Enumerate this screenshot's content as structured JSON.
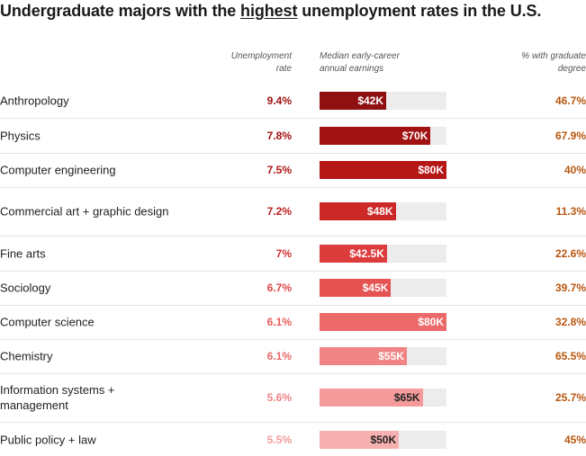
{
  "title": {
    "before": "Undergraduate majors with the ",
    "highlight": "highest",
    "after": " unemployment rates in the U.S."
  },
  "columns": {
    "unemployment_line1": "Unemployment",
    "unemployment_line2": "rate",
    "earnings_line1": "Median early-career",
    "earnings_line2": "annual earnings",
    "grad_line1": "% with graduate",
    "grad_line2": "degree"
  },
  "colors": {
    "rate_text": [
      "#a31212",
      "#a31212",
      "#b01717",
      "#bd1f1f",
      "#d42e2e",
      "#e04646",
      "#e85b5b",
      "#e86b6b",
      "#ef8585",
      "#f19b9b"
    ],
    "bar_fill": [
      "#8f1010",
      "#a11212",
      "#b51616",
      "#cc2828",
      "#dc3c3c",
      "#e55252",
      "#ec6a6a",
      "#f08484",
      "#f59a9a",
      "#f7b0b0"
    ],
    "bar_label": [
      "#ffffff",
      "#ffffff",
      "#ffffff",
      "#ffffff",
      "#ffffff",
      "#ffffff",
      "#ffffff",
      "#ffffff",
      "#222222",
      "#222222"
    ],
    "grad_text": "#b8560f"
  },
  "chart_data": {
    "type": "table",
    "title": "Undergraduate majors with the highest unemployment rates in the U.S.",
    "columns": [
      "Unemployment rate",
      "Median early-career annual earnings",
      "% with graduate degree"
    ],
    "earnings_max": 80,
    "rows": [
      {
        "major": "Anthropology",
        "rate": "9.4%",
        "earnings": 42,
        "earnings_label": "$42K",
        "grad": "46.7%"
      },
      {
        "major": "Physics",
        "rate": "7.8%",
        "earnings": 70,
        "earnings_label": "$70K",
        "grad": "67.9%"
      },
      {
        "major": "Computer engineering",
        "rate": "7.5%",
        "earnings": 80,
        "earnings_label": "$80K",
        "grad": "40%"
      },
      {
        "major": "Commercial art + graphic design",
        "rate": "7.2%",
        "earnings": 48,
        "earnings_label": "$48K",
        "grad": "11.3%"
      },
      {
        "major": "Fine arts",
        "rate": "7%",
        "earnings": 42.5,
        "earnings_label": "$42.5K",
        "grad": "22.6%"
      },
      {
        "major": "Sociology",
        "rate": "6.7%",
        "earnings": 45,
        "earnings_label": "$45K",
        "grad": "39.7%"
      },
      {
        "major": "Computer science",
        "rate": "6.1%",
        "earnings": 80,
        "earnings_label": "$80K",
        "grad": "32.8%"
      },
      {
        "major": "Chemistry",
        "rate": "6.1%",
        "earnings": 55,
        "earnings_label": "$55K",
        "grad": "65.5%"
      },
      {
        "major": "Information systems + management",
        "rate": "5.6%",
        "earnings": 65,
        "earnings_label": "$65K",
        "grad": "25.7%"
      },
      {
        "major": "Public policy + law",
        "rate": "5.5%",
        "earnings": 50,
        "earnings_label": "$50K",
        "grad": "45%"
      }
    ]
  }
}
